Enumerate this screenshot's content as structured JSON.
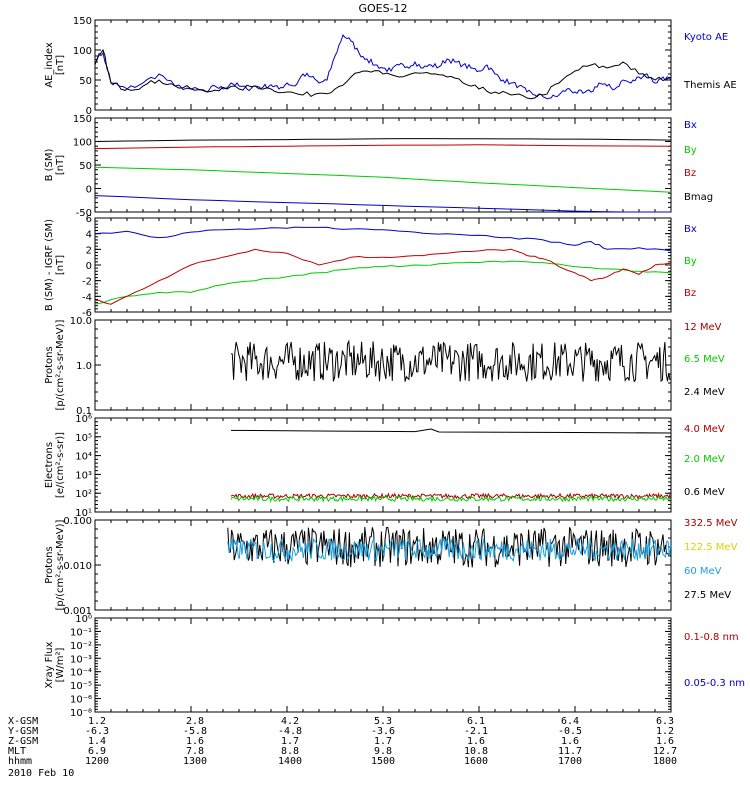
{
  "title": "GOES-12",
  "colors": {
    "black": "#000000",
    "red": "#c00000",
    "green": "#00cc00",
    "blue": "#0000cc",
    "darkred": "#aa0000",
    "yellow": "#e0d000",
    "cyan": "#1aa0e0"
  },
  "chart_data": [
    {
      "type": "line",
      "id": "ae",
      "ylabel": "AE_index\n[nT]",
      "ylim": [
        0,
        150
      ],
      "yscale": "linear",
      "yticks": [
        "0",
        "50",
        "100",
        "150"
      ],
      "legend": [
        {
          "name": "Kyoto AE",
          "color": "blue"
        },
        {
          "name": "Themis AE",
          "color": "black"
        }
      ],
      "series": [
        {
          "name": "Kyoto AE",
          "color": "blue",
          "x": [
            0,
            5,
            10,
            15,
            20,
            30,
            40,
            50,
            60,
            70,
            75,
            80,
            85,
            90,
            95,
            100,
            105,
            110,
            115,
            120,
            125,
            130,
            135,
            140,
            145,
            150,
            155,
            160,
            165,
            170,
            175,
            180,
            185,
            190,
            195,
            200,
            205,
            210,
            215,
            220,
            225,
            230,
            235,
            240,
            245,
            250,
            255,
            260,
            265,
            270,
            275,
            280,
            285,
            290,
            295,
            300,
            305,
            310,
            315,
            320,
            325,
            330,
            335,
            340,
            345,
            350,
            355,
            360
          ],
          "y": [
            85,
            95,
            45,
            40,
            35,
            45,
            60,
            40,
            35,
            30,
            40,
            35,
            45,
            40,
            35,
            40,
            38,
            42,
            35,
            45,
            40,
            60,
            55,
            45,
            50,
            90,
            125,
            115,
            95,
            85,
            75,
            70,
            65,
            75,
            72,
            80,
            70,
            75,
            72,
            85,
            80,
            75,
            70,
            65,
            75,
            60,
            50,
            45,
            40,
            30,
            25,
            22,
            20,
            25,
            35,
            30,
            28,
            30,
            45,
            40,
            35,
            50,
            45,
            55,
            60,
            45,
            55,
            50
          ]
        },
        {
          "name": "Themis AE",
          "color": "black",
          "x": [
            0,
            5,
            10,
            15,
            20,
            30,
            40,
            50,
            60,
            70,
            80,
            90,
            100,
            110,
            120,
            130,
            140,
            150,
            160,
            170,
            180,
            190,
            200,
            210,
            220,
            230,
            240,
            250,
            260,
            270,
            280,
            290,
            300,
            310,
            320,
            330,
            340,
            350,
            360
          ],
          "y": [
            75,
            100,
            45,
            40,
            35,
            40,
            50,
            40,
            35,
            30,
            38,
            35,
            40,
            35,
            30,
            25,
            28,
            35,
            55,
            65,
            60,
            55,
            62,
            60,
            55,
            45,
            35,
            30,
            25,
            20,
            25,
            45,
            65,
            75,
            70,
            80,
            60,
            50,
            55
          ]
        }
      ]
    },
    {
      "type": "line",
      "id": "bfield",
      "ylabel": "B (SM)\n[nT]",
      "ylim": [
        -50,
        150
      ],
      "yscale": "linear",
      "yticks": [
        "-50",
        "0",
        "50",
        "100",
        "150"
      ],
      "legend": [
        {
          "name": "Bx",
          "color": "blue"
        },
        {
          "name": "By",
          "color": "green"
        },
        {
          "name": "Bz",
          "color": "red"
        },
        {
          "name": "Bmag",
          "color": "black"
        }
      ],
      "series": [
        {
          "name": "Bmag",
          "color": "black",
          "x": [
            0,
            60,
            120,
            180,
            240,
            300,
            360
          ],
          "y": [
            100,
            103,
            104,
            106,
            106,
            105,
            103
          ]
        },
        {
          "name": "Bz",
          "color": "red",
          "x": [
            0,
            60,
            120,
            180,
            240,
            300,
            360
          ],
          "y": [
            85,
            88,
            90,
            92,
            93,
            91,
            90
          ]
        },
        {
          "name": "By",
          "color": "green",
          "x": [
            0,
            60,
            120,
            180,
            240,
            300,
            360
          ],
          "y": [
            45,
            40,
            32,
            24,
            12,
            2,
            -8
          ]
        },
        {
          "name": "Bx",
          "color": "blue",
          "x": [
            0,
            60,
            120,
            180,
            240,
            300,
            360
          ],
          "y": [
            -15,
            -24,
            -30,
            -36,
            -42,
            -48,
            -52
          ]
        }
      ]
    },
    {
      "type": "line",
      "id": "bdiff",
      "ylabel": "B (SM) - IGRF (SM)\n[nT]",
      "ylim": [
        -6,
        6
      ],
      "yscale": "linear",
      "yticks": [
        "-6",
        "-4",
        "-2",
        "0",
        "2",
        "4",
        "6"
      ],
      "legend": [
        {
          "name": "Bx",
          "color": "blue"
        },
        {
          "name": "By",
          "color": "green"
        },
        {
          "name": "Bz",
          "color": "red"
        }
      ],
      "series": [
        {
          "name": "Bx",
          "color": "blue",
          "x": [
            0,
            20,
            40,
            60,
            80,
            100,
            120,
            140,
            160,
            180,
            200,
            220,
            240,
            260,
            280,
            300,
            310,
            320,
            340,
            360
          ],
          "y": [
            4,
            4.3,
            3.5,
            4.2,
            4.5,
            4.6,
            4.7,
            4.8,
            4.6,
            4.5,
            4.2,
            4,
            3.8,
            3.5,
            3.2,
            2.5,
            3,
            2,
            2.2,
            1.8
          ]
        },
        {
          "name": "By",
          "color": "green",
          "x": [
            0,
            20,
            40,
            60,
            80,
            100,
            120,
            140,
            160,
            180,
            200,
            220,
            240,
            260,
            280,
            300,
            320,
            340,
            360
          ],
          "y": [
            -5,
            -4,
            -3.5,
            -3.5,
            -2.5,
            -2,
            -1.5,
            -1,
            -0.5,
            -0.2,
            0,
            0.2,
            0.3,
            0.5,
            0.3,
            -0.2,
            -0.5,
            -0.8,
            -1
          ]
        },
        {
          "name": "Bz",
          "color": "red",
          "x": [
            0,
            10,
            20,
            40,
            60,
            80,
            100,
            120,
            140,
            160,
            180,
            200,
            220,
            240,
            260,
            270,
            280,
            300,
            310,
            320,
            330,
            340,
            350,
            360
          ],
          "y": [
            -4.5,
            -5,
            -4,
            -2,
            0,
            1,
            2,
            1.5,
            0,
            1,
            1,
            1.2,
            1.5,
            1.8,
            2,
            1.2,
            0.8,
            -1,
            -2,
            -1.5,
            -0.5,
            -1.2,
            0,
            0.2
          ]
        }
      ]
    },
    {
      "type": "line",
      "id": "protons-low",
      "ylabel": "Protons\n[p/(cm²-s-sr-MeV)]",
      "ylim": [
        0.1,
        10
      ],
      "yscale": "log",
      "yticks": [
        "0.1",
        "1.0",
        "10.0"
      ],
      "legend": [
        {
          "name": "12 MeV",
          "color": "darkred"
        },
        {
          "name": "6.5 MeV",
          "color": "green"
        },
        {
          "name": "2.4 MeV",
          "color": "black"
        }
      ],
      "series": [
        {
          "name": "2.4 MeV",
          "color": "black",
          "x_start": 85,
          "x_end": 360,
          "base": 1.2,
          "noise": "high"
        }
      ]
    },
    {
      "type": "line",
      "id": "electrons",
      "ylabel": "Electrons\n[e/(cm²-s-sr)]",
      "ylim": [
        10,
        1000000
      ],
      "yscale": "log",
      "yticks": [
        "10¹",
        "10²",
        "10³",
        "10⁴",
        "10⁵",
        "10⁶"
      ],
      "legend": [
        {
          "name": "4.0 MeV",
          "color": "darkred"
        },
        {
          "name": "2.0 MeV",
          "color": "green"
        },
        {
          "name": "0.6 MeV",
          "color": "black"
        }
      ],
      "series": [
        {
          "name": "0.6 MeV",
          "color": "black",
          "x": [
            85,
            150,
            200,
            210,
            215,
            300,
            360
          ],
          "y": [
            220000,
            200000,
            190000,
            260000,
            180000,
            170000,
            160000
          ]
        },
        {
          "name": "4.0 MeV",
          "color": "darkred",
          "x_start": 85,
          "x_end": 360,
          "base": 70,
          "noise": "low"
        },
        {
          "name": "2.0 MeV",
          "color": "green",
          "x_start": 85,
          "x_end": 360,
          "base": 50,
          "noise": "low"
        }
      ]
    },
    {
      "type": "line",
      "id": "protons-high",
      "ylabel": "Protons\n[p/(cm²-s-sr-MeV)]",
      "ylim": [
        0.001,
        0.1
      ],
      "yscale": "log",
      "yticks": [
        "0.001",
        "0.010",
        "0.100"
      ],
      "legend": [
        {
          "name": "332.5 MeV",
          "color": "darkred"
        },
        {
          "name": "122.5 MeV",
          "color": "yellow"
        },
        {
          "name": "60 MeV",
          "color": "cyan"
        },
        {
          "name": "27.5 MeV",
          "color": "black"
        }
      ],
      "series": [
        {
          "name": "27.5 MeV",
          "color": "black",
          "x_start": 83,
          "x_end": 360,
          "base": 0.025,
          "noise": "high"
        },
        {
          "name": "60 MeV",
          "color": "cyan",
          "x_start": 83,
          "x_end": 360,
          "base": 0.022,
          "noise": "mid"
        }
      ]
    },
    {
      "type": "line",
      "id": "xray",
      "ylabel": "Xray Flux\n[W/m²]",
      "ylim": [
        1e-09,
        1
      ],
      "yscale": "log",
      "yticks": [
        "10⁻⁸",
        "10⁻⁶",
        "10⁻⁵",
        "10⁻⁴",
        "10⁻³",
        "10⁻²",
        "10⁻¹",
        "10⁰"
      ],
      "legend": [
        {
          "name": "0.1-0.8 nm",
          "color": "darkred"
        },
        {
          "name": "0.05-0.3 nm",
          "color": "blue"
        }
      ],
      "series": []
    }
  ],
  "footer": {
    "rows": [
      {
        "label": "X-GSM",
        "values": [
          "1.2",
          "2.8",
          "4.2",
          "5.3",
          "6.1",
          "6.4",
          "6.3"
        ]
      },
      {
        "label": "Y-GSM",
        "values": [
          "-6.3",
          "-5.8",
          "-4.8",
          "-3.6",
          "-2.1",
          "-0.5",
          "1.2"
        ]
      },
      {
        "label": "Z-GSM",
        "values": [
          "1.4",
          "1.6",
          "1.7",
          "1.7",
          "1.6",
          "1.6",
          "1.6"
        ]
      },
      {
        "label": "MLT",
        "values": [
          "6.9",
          "7.8",
          "8.8",
          "9.8",
          "10.8",
          "11.7",
          "12.7"
        ]
      },
      {
        "label": "hhmm",
        "values": [
          "1200",
          "1300",
          "1400",
          "1500",
          "1600",
          "1700",
          "1800"
        ]
      }
    ],
    "date": "2010 Feb 10"
  }
}
